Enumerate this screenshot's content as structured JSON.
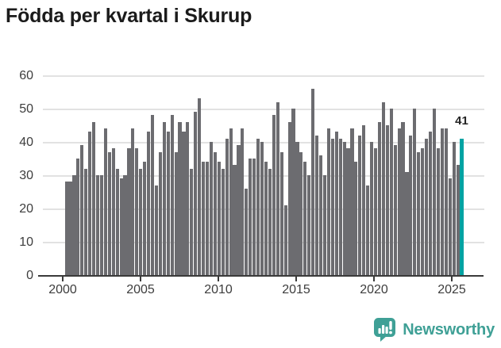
{
  "title": "Födda per kvartal i Skurup",
  "chart_data": {
    "type": "bar",
    "title": "Födda per kvartal i Skurup",
    "x_start": "2000-Q1",
    "x_end": "2025-Q2",
    "frequency": "quarterly",
    "values": [
      28,
      28,
      30,
      35,
      39,
      32,
      43,
      46,
      30,
      30,
      44,
      37,
      38,
      32,
      29,
      30,
      38,
      44,
      38,
      32,
      34,
      43,
      48,
      27,
      37,
      46,
      43,
      48,
      37,
      46,
      43,
      46,
      32,
      49,
      53,
      34,
      34,
      40,
      37,
      34,
      32,
      41,
      44,
      33,
      39,
      44,
      26,
      35,
      35,
      41,
      40,
      34,
      32,
      48,
      52,
      37,
      21,
      46,
      50,
      40,
      37,
      34,
      30,
      56,
      42,
      36,
      30,
      44,
      41,
      43,
      41,
      40,
      38,
      44,
      34,
      42,
      45,
      27,
      40,
      38,
      46,
      52,
      45,
      50,
      39,
      44,
      46,
      31,
      42,
      50,
      37,
      38,
      41,
      43,
      50,
      38,
      44,
      44,
      29,
      40,
      33,
      41
    ],
    "highlight_last": true,
    "annotation": {
      "label": "41"
    },
    "y_ticks": [
      0,
      10,
      20,
      30,
      40,
      50,
      60
    ],
    "x_ticks": [
      "2000",
      "2005",
      "2010",
      "2015",
      "2020",
      "2025"
    ],
    "ylim": [
      0,
      60
    ],
    "grid": true,
    "legend": false,
    "bar_color": "#6c6c70",
    "highlight_color": "#00a3a3",
    "grid_color": "#e2e2e2",
    "axis_color": "#3a3a3a",
    "label_color": "#3d3d3d"
  },
  "branding": {
    "logo_text": "Newsworthy",
    "logo_color": "#3fa096",
    "logo_icon": "newsworthy-speech-bubble-chart-icon"
  }
}
